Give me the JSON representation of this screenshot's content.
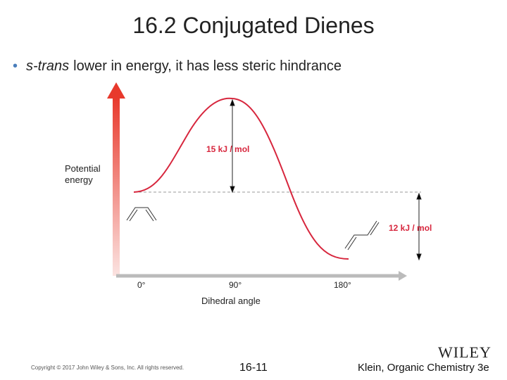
{
  "header": {
    "title": "16.2 Conjugated Dienes"
  },
  "bullet": {
    "italic": "s-trans",
    "text": "lower in energy, it has less steric hindrance"
  },
  "figure": {
    "y_label": "Potential energy",
    "x_label": "Dihedral angle",
    "x_ticks": [
      "0°",
      "90°",
      "180°"
    ],
    "barrier_label": "15 kJ / mol",
    "difference_label": "12 kJ / mol"
  },
  "footer": {
    "copyright": "Copyright © 2017 John Wiley & Sons, Inc. All rights reserved.",
    "page": "16-11",
    "logo": "WILEY",
    "book": "Klein, Organic Chemistry 3e"
  }
}
